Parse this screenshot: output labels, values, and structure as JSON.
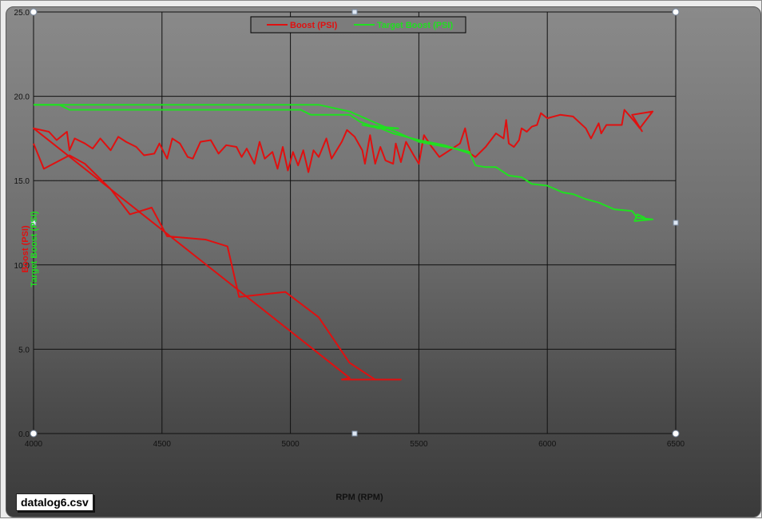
{
  "file_label": "datalog6.csv",
  "chart_data": {
    "type": "line",
    "title": "",
    "xlabel": "RPM (RPM)",
    "ylabel_series": [
      "Boost (PSI)",
      "Target Boost (PSI)"
    ],
    "xlim": [
      4000,
      6500
    ],
    "ylim": [
      0,
      25
    ],
    "x_ticks": [
      "4000",
      "4500",
      "5000",
      "5500",
      "6000",
      "6500"
    ],
    "y_ticks": [
      "0.0",
      "5.0",
      "10.0",
      "15.0",
      "20.0",
      "25.0"
    ],
    "grid": true,
    "legend_position": "top-center",
    "series": [
      {
        "name": "Boost (PSI)",
        "color": "#e01010",
        "points": [
          [
            4000,
            17.2
          ],
          [
            4040,
            15.7
          ],
          [
            4140,
            16.5
          ],
          [
            4200,
            16.0
          ],
          [
            4300,
            14.5
          ],
          [
            4375,
            13.0
          ],
          [
            4460,
            13.4
          ],
          [
            4520,
            11.7
          ],
          [
            4670,
            11.5
          ],
          [
            4755,
            11.1
          ],
          [
            4800,
            8.1
          ],
          [
            4980,
            8.4
          ],
          [
            5110,
            6.9
          ],
          [
            5230,
            4.2
          ],
          [
            5330,
            3.2
          ],
          [
            5430,
            3.2
          ],
          [
            5430,
            3.2
          ],
          [
            5200,
            3.2
          ],
          [
            5230,
            3.3
          ],
          [
            4000,
            18.1
          ],
          [
            4060,
            17.9
          ],
          [
            4090,
            17.4
          ],
          [
            4130,
            17.9
          ],
          [
            4140,
            16.8
          ],
          [
            4160,
            17.5
          ],
          [
            4200,
            17.2
          ],
          [
            4230,
            16.9
          ],
          [
            4260,
            17.5
          ],
          [
            4300,
            16.8
          ],
          [
            4330,
            17.6
          ],
          [
            4360,
            17.3
          ],
          [
            4400,
            17.0
          ],
          [
            4430,
            16.5
          ],
          [
            4470,
            16.6
          ],
          [
            4490,
            17.2
          ],
          [
            4520,
            16.3
          ],
          [
            4540,
            17.5
          ],
          [
            4570,
            17.2
          ],
          [
            4600,
            16.4
          ],
          [
            4620,
            16.3
          ],
          [
            4650,
            17.3
          ],
          [
            4690,
            17.4
          ],
          [
            4720,
            16.6
          ],
          [
            4750,
            17.1
          ],
          [
            4790,
            17.0
          ],
          [
            4810,
            16.4
          ],
          [
            4830,
            16.9
          ],
          [
            4860,
            16.0
          ],
          [
            4880,
            17.3
          ],
          [
            4900,
            16.3
          ],
          [
            4930,
            16.7
          ],
          [
            4950,
            15.7
          ],
          [
            4970,
            17.0
          ],
          [
            4990,
            15.6
          ],
          [
            5010,
            16.7
          ],
          [
            5030,
            15.9
          ],
          [
            5050,
            16.8
          ],
          [
            5070,
            15.5
          ],
          [
            5090,
            16.8
          ],
          [
            5110,
            16.4
          ],
          [
            5140,
            17.5
          ],
          [
            5160,
            16.3
          ],
          [
            5200,
            17.3
          ],
          [
            5220,
            18.0
          ],
          [
            5250,
            17.6
          ],
          [
            5280,
            16.8
          ],
          [
            5290,
            16.0
          ],
          [
            5310,
            17.7
          ],
          [
            5330,
            16.0
          ],
          [
            5350,
            17.0
          ],
          [
            5370,
            16.2
          ],
          [
            5400,
            16.0
          ],
          [
            5410,
            17.2
          ],
          [
            5430,
            16.1
          ],
          [
            5450,
            17.3
          ],
          [
            5480,
            16.5
          ],
          [
            5500,
            16.0
          ],
          [
            5520,
            17.7
          ],
          [
            5550,
            17.0
          ],
          [
            5580,
            16.4
          ],
          [
            5620,
            16.8
          ],
          [
            5660,
            17.2
          ],
          [
            5680,
            18.1
          ],
          [
            5700,
            16.6
          ],
          [
            5720,
            16.4
          ],
          [
            5760,
            17.0
          ],
          [
            5800,
            17.8
          ],
          [
            5830,
            17.5
          ],
          [
            5840,
            18.6
          ],
          [
            5850,
            17.2
          ],
          [
            5870,
            17.0
          ],
          [
            5890,
            17.4
          ],
          [
            5900,
            18.1
          ],
          [
            5920,
            17.9
          ],
          [
            5940,
            18.2
          ],
          [
            5960,
            18.3
          ],
          [
            5975,
            19.0
          ],
          [
            6000,
            18.7
          ],
          [
            6050,
            18.9
          ],
          [
            6100,
            18.8
          ],
          [
            6150,
            18.1
          ],
          [
            6170,
            17.5
          ],
          [
            6200,
            18.4
          ],
          [
            6210,
            17.8
          ],
          [
            6230,
            18.3
          ],
          [
            6290,
            18.3
          ],
          [
            6300,
            19.2
          ],
          [
            6340,
            18.5
          ],
          [
            6360,
            18.1
          ],
          [
            6410,
            19.1
          ],
          [
            6330,
            18.9
          ],
          [
            6370,
            17.9
          ]
        ]
      },
      {
        "name": "Target Boost (PSI)",
        "color": "#20e020",
        "points": [
          [
            4000,
            19.5
          ],
          [
            4100,
            19.5
          ],
          [
            4140,
            19.2
          ],
          [
            5040,
            19.2
          ],
          [
            5080,
            18.9
          ],
          [
            5230,
            18.9
          ],
          [
            5270,
            18.5
          ],
          [
            5340,
            18.1
          ],
          [
            5420,
            18.1
          ],
          [
            5280,
            18.3
          ],
          [
            5350,
            18.1
          ],
          [
            5400,
            17.8
          ],
          [
            5500,
            17.4
          ],
          [
            5600,
            17.1
          ],
          [
            5700,
            16.6
          ],
          [
            5720,
            15.9
          ],
          [
            5760,
            15.8
          ],
          [
            5800,
            15.8
          ],
          [
            5850,
            15.3
          ],
          [
            5900,
            15.2
          ],
          [
            5940,
            14.8
          ],
          [
            6000,
            14.7
          ],
          [
            6060,
            14.3
          ],
          [
            6100,
            14.2
          ],
          [
            6150,
            13.9
          ],
          [
            6200,
            13.7
          ],
          [
            6260,
            13.3
          ],
          [
            6330,
            13.2
          ],
          [
            6350,
            12.8
          ],
          [
            6410,
            12.7
          ],
          [
            6340,
            12.6
          ],
          [
            6350,
            13.0
          ],
          [
            6380,
            12.8
          ]
        ]
      },
      {
        "name": "Target Boost (PSI)",
        "color": "#20e020",
        "points": [
          [
            4000,
            19.5
          ],
          [
            5110,
            19.5
          ],
          [
            5230,
            19.1
          ],
          [
            5350,
            18.3
          ],
          [
            5500,
            17.3
          ],
          [
            5640,
            16.9
          ],
          [
            5700,
            16.7
          ]
        ]
      }
    ]
  }
}
